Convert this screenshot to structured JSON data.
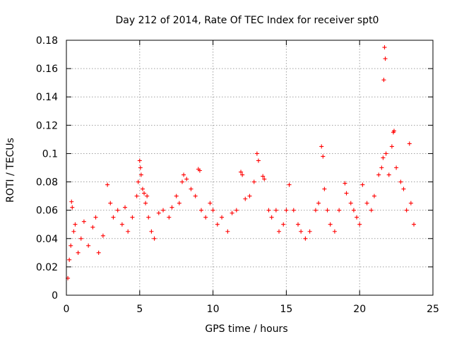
{
  "chart_data": {
    "type": "scatter",
    "title": "Day 212 of 2014, Rate Of TEC Index for receiver spt0",
    "xlabel": "GPS time / hours",
    "ylabel": "ROTI / TECUs",
    "xlim": [
      0,
      25
    ],
    "ylim": [
      0,
      0.18
    ],
    "xticks": [
      0,
      5,
      10,
      15,
      20,
      25
    ],
    "xtick_labels": [
      "0",
      "5",
      "10",
      "15",
      "20",
      "25"
    ],
    "yticks": [
      0,
      0.02,
      0.04,
      0.06,
      0.08,
      0.1,
      0.12,
      0.14,
      0.16,
      0.18
    ],
    "ytick_labels": [
      "0",
      "0.02",
      "0.04",
      "0.06",
      "0.08",
      "0.1",
      "0.12",
      "0.14",
      "0.16",
      "0.18"
    ],
    "grid": true,
    "marker": "+",
    "marker_color": "#ff0000",
    "series": [
      {
        "name": "ROTI",
        "points": [
          [
            0.1,
            0.012
          ],
          [
            0.2,
            0.025
          ],
          [
            0.3,
            0.035
          ],
          [
            0.35,
            0.066
          ],
          [
            0.4,
            0.062
          ],
          [
            0.5,
            0.045
          ],
          [
            0.6,
            0.05
          ],
          [
            0.8,
            0.03
          ],
          [
            1.0,
            0.04
          ],
          [
            1.2,
            0.052
          ],
          [
            1.5,
            0.035
          ],
          [
            1.8,
            0.048
          ],
          [
            2.0,
            0.055
          ],
          [
            2.2,
            0.03
          ],
          [
            2.5,
            0.042
          ],
          [
            2.8,
            0.078
          ],
          [
            3.0,
            0.065
          ],
          [
            3.2,
            0.055
          ],
          [
            3.5,
            0.06
          ],
          [
            3.8,
            0.05
          ],
          [
            4.0,
            0.062
          ],
          [
            4.2,
            0.045
          ],
          [
            4.5,
            0.055
          ],
          [
            4.8,
            0.07
          ],
          [
            4.9,
            0.08
          ],
          [
            5.0,
            0.095
          ],
          [
            5.05,
            0.09
          ],
          [
            5.1,
            0.085
          ],
          [
            5.2,
            0.075
          ],
          [
            5.3,
            0.072
          ],
          [
            5.4,
            0.065
          ],
          [
            5.5,
            0.07
          ],
          [
            5.6,
            0.055
          ],
          [
            5.8,
            0.045
          ],
          [
            6.0,
            0.04
          ],
          [
            6.3,
            0.058
          ],
          [
            6.6,
            0.06
          ],
          [
            7.0,
            0.055
          ],
          [
            7.2,
            0.062
          ],
          [
            7.5,
            0.07
          ],
          [
            7.7,
            0.065
          ],
          [
            7.9,
            0.08
          ],
          [
            8.0,
            0.085
          ],
          [
            8.2,
            0.082
          ],
          [
            8.5,
            0.075
          ],
          [
            8.8,
            0.07
          ],
          [
            9.0,
            0.089
          ],
          [
            9.1,
            0.088
          ],
          [
            9.2,
            0.06
          ],
          [
            9.5,
            0.055
          ],
          [
            9.8,
            0.065
          ],
          [
            10.0,
            0.06
          ],
          [
            10.3,
            0.05
          ],
          [
            10.6,
            0.055
          ],
          [
            11.0,
            0.045
          ],
          [
            11.3,
            0.058
          ],
          [
            11.6,
            0.06
          ],
          [
            11.9,
            0.087
          ],
          [
            12.0,
            0.085
          ],
          [
            12.2,
            0.068
          ],
          [
            12.5,
            0.07
          ],
          [
            12.8,
            0.08
          ],
          [
            13.0,
            0.1
          ],
          [
            13.1,
            0.095
          ],
          [
            13.4,
            0.084
          ],
          [
            13.5,
            0.082
          ],
          [
            13.8,
            0.06
          ],
          [
            14.0,
            0.055
          ],
          [
            14.3,
            0.06
          ],
          [
            14.5,
            0.045
          ],
          [
            14.8,
            0.05
          ],
          [
            15.0,
            0.06
          ],
          [
            15.2,
            0.078
          ],
          [
            15.5,
            0.06
          ],
          [
            15.8,
            0.05
          ],
          [
            16.0,
            0.045
          ],
          [
            16.3,
            0.04
          ],
          [
            16.6,
            0.045
          ],
          [
            17.0,
            0.06
          ],
          [
            17.2,
            0.065
          ],
          [
            17.4,
            0.105
          ],
          [
            17.5,
            0.098
          ],
          [
            17.6,
            0.075
          ],
          [
            17.8,
            0.06
          ],
          [
            18.0,
            0.05
          ],
          [
            18.3,
            0.045
          ],
          [
            18.6,
            0.06
          ],
          [
            19.0,
            0.079
          ],
          [
            19.1,
            0.072
          ],
          [
            19.4,
            0.065
          ],
          [
            19.6,
            0.06
          ],
          [
            19.8,
            0.055
          ],
          [
            20.0,
            0.05
          ],
          [
            20.2,
            0.078
          ],
          [
            20.5,
            0.065
          ],
          [
            20.8,
            0.06
          ],
          [
            21.0,
            0.07
          ],
          [
            21.3,
            0.085
          ],
          [
            21.5,
            0.09
          ],
          [
            21.6,
            0.097
          ],
          [
            21.65,
            0.152
          ],
          [
            21.7,
            0.175
          ],
          [
            21.75,
            0.167
          ],
          [
            21.8,
            0.1
          ],
          [
            22.0,
            0.085
          ],
          [
            22.2,
            0.105
          ],
          [
            22.3,
            0.115
          ],
          [
            22.35,
            0.116
          ],
          [
            22.5,
            0.09
          ],
          [
            22.8,
            0.08
          ],
          [
            23.0,
            0.075
          ],
          [
            23.2,
            0.06
          ],
          [
            23.4,
            0.107
          ],
          [
            23.5,
            0.065
          ],
          [
            23.7,
            0.05
          ]
        ]
      }
    ]
  }
}
